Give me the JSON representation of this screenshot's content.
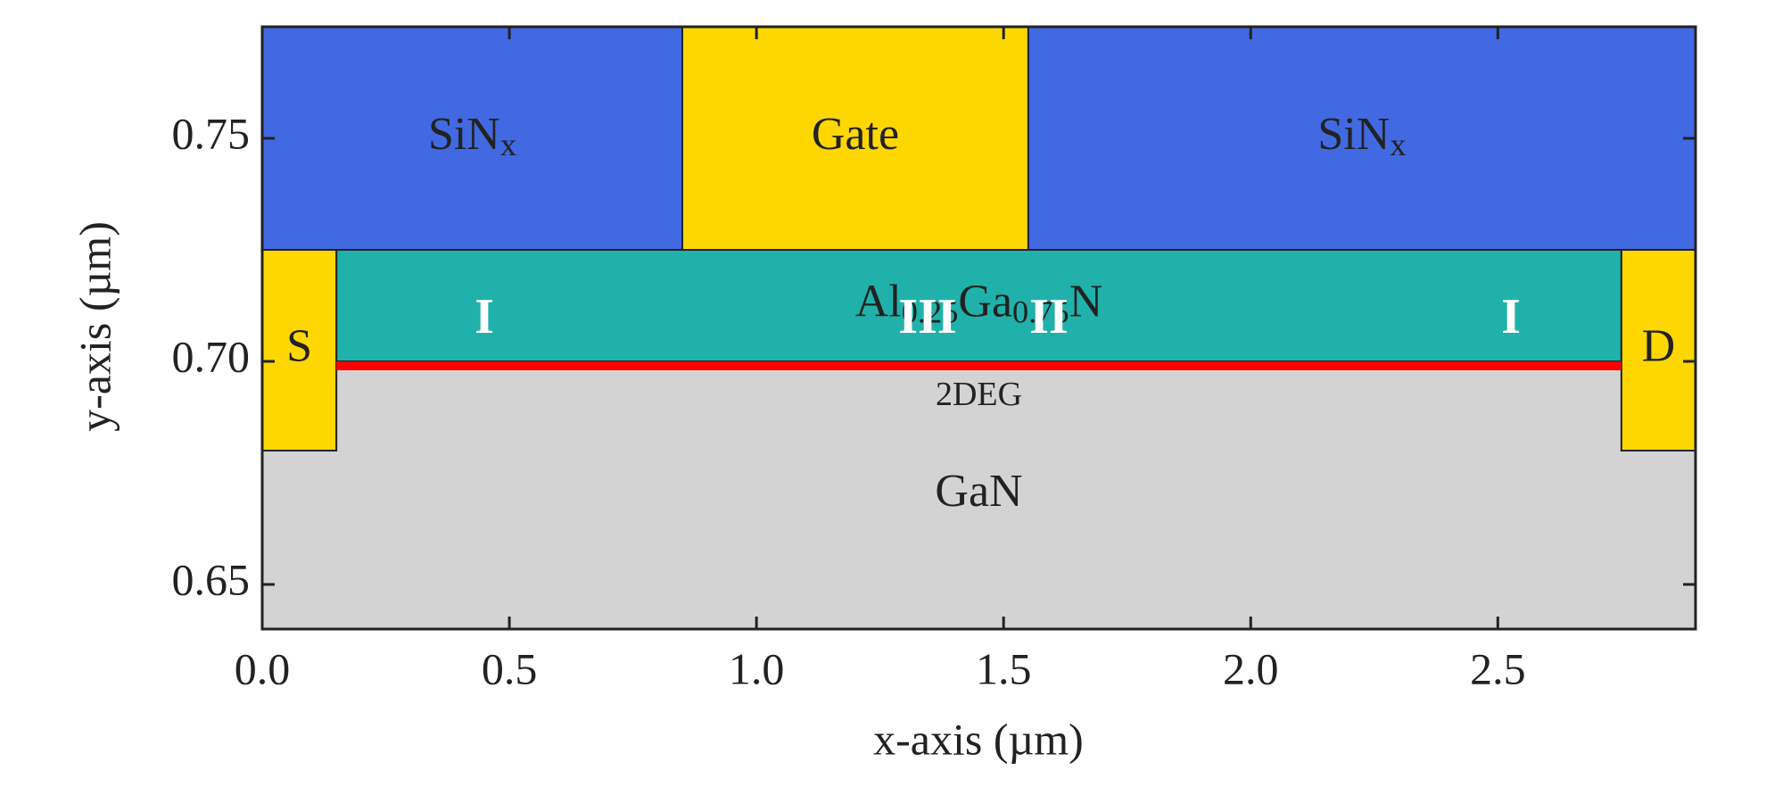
{
  "chart_data": {
    "type": "device-cross-section",
    "xlabel": "x-axis (µm)",
    "ylabel": "y-axis (µm)",
    "xlim": [
      0,
      2.9
    ],
    "ylim": [
      0.64,
      0.775
    ],
    "xticks": [
      {
        "value": 0,
        "label": "0.0"
      },
      0.5,
      {
        "value": 1,
        "label": "1.0"
      },
      1.5,
      {
        "value": 2,
        "label": "2.0"
      },
      2.5
    ],
    "yticks": [
      0.65,
      {
        "value": 0.7,
        "label": "0.70"
      },
      0.75
    ],
    "regions": [
      {
        "x": [
          0,
          2.9
        ],
        "y": [
          0.64,
          0.7
        ],
        "color": "#d3d3d3",
        "label": [
          {
            "t": "GaN"
          }
        ]
      },
      {
        "x": [
          0,
          0.85
        ],
        "y": [
          0.725,
          0.775
        ],
        "color": "#4169e1",
        "label": [
          {
            "t": "SiN"
          },
          {
            "t": "x",
            "sub": true
          }
        ]
      },
      {
        "x": [
          0.85,
          1.55
        ],
        "y": [
          0.725,
          0.775
        ],
        "color": "#ffd700",
        "label": [
          {
            "t": "Gate"
          }
        ]
      },
      {
        "x": [
          1.55,
          2.9
        ],
        "y": [
          0.725,
          0.775
        ],
        "color": "#4169e1",
        "label": [
          {
            "t": "SiN"
          },
          {
            "t": "x",
            "sub": true
          }
        ]
      },
      {
        "x": [
          0.15,
          2.75
        ],
        "y": [
          0.7,
          0.725
        ],
        "color": "#20b2aa",
        "label": [
          {
            "t": "Al"
          },
          {
            "t": "0.25",
            "sub": true
          },
          {
            "t": "Ga"
          },
          {
            "t": "0.75",
            "sub": true
          },
          {
            "t": "N"
          }
        ]
      },
      {
        "x": [
          0,
          0.15
        ],
        "y": [
          0.68,
          0.725
        ],
        "color": "#ffd700",
        "label": [
          {
            "t": "S"
          }
        ]
      },
      {
        "x": [
          2.75,
          2.9
        ],
        "y": [
          0.68,
          0.725
        ],
        "color": "#ffd700",
        "label": [
          {
            "t": "D"
          }
        ]
      },
      {
        "x": [
          0.15,
          2.75
        ],
        "y": [
          0.698,
          0.7
        ],
        "color": "#ff0000",
        "label": [
          {
            "t": "2DEG"
          }
        ],
        "label_position": "below"
      }
    ],
    "annotations": [
      "I",
      "III",
      "II",
      "I"
    ]
  }
}
